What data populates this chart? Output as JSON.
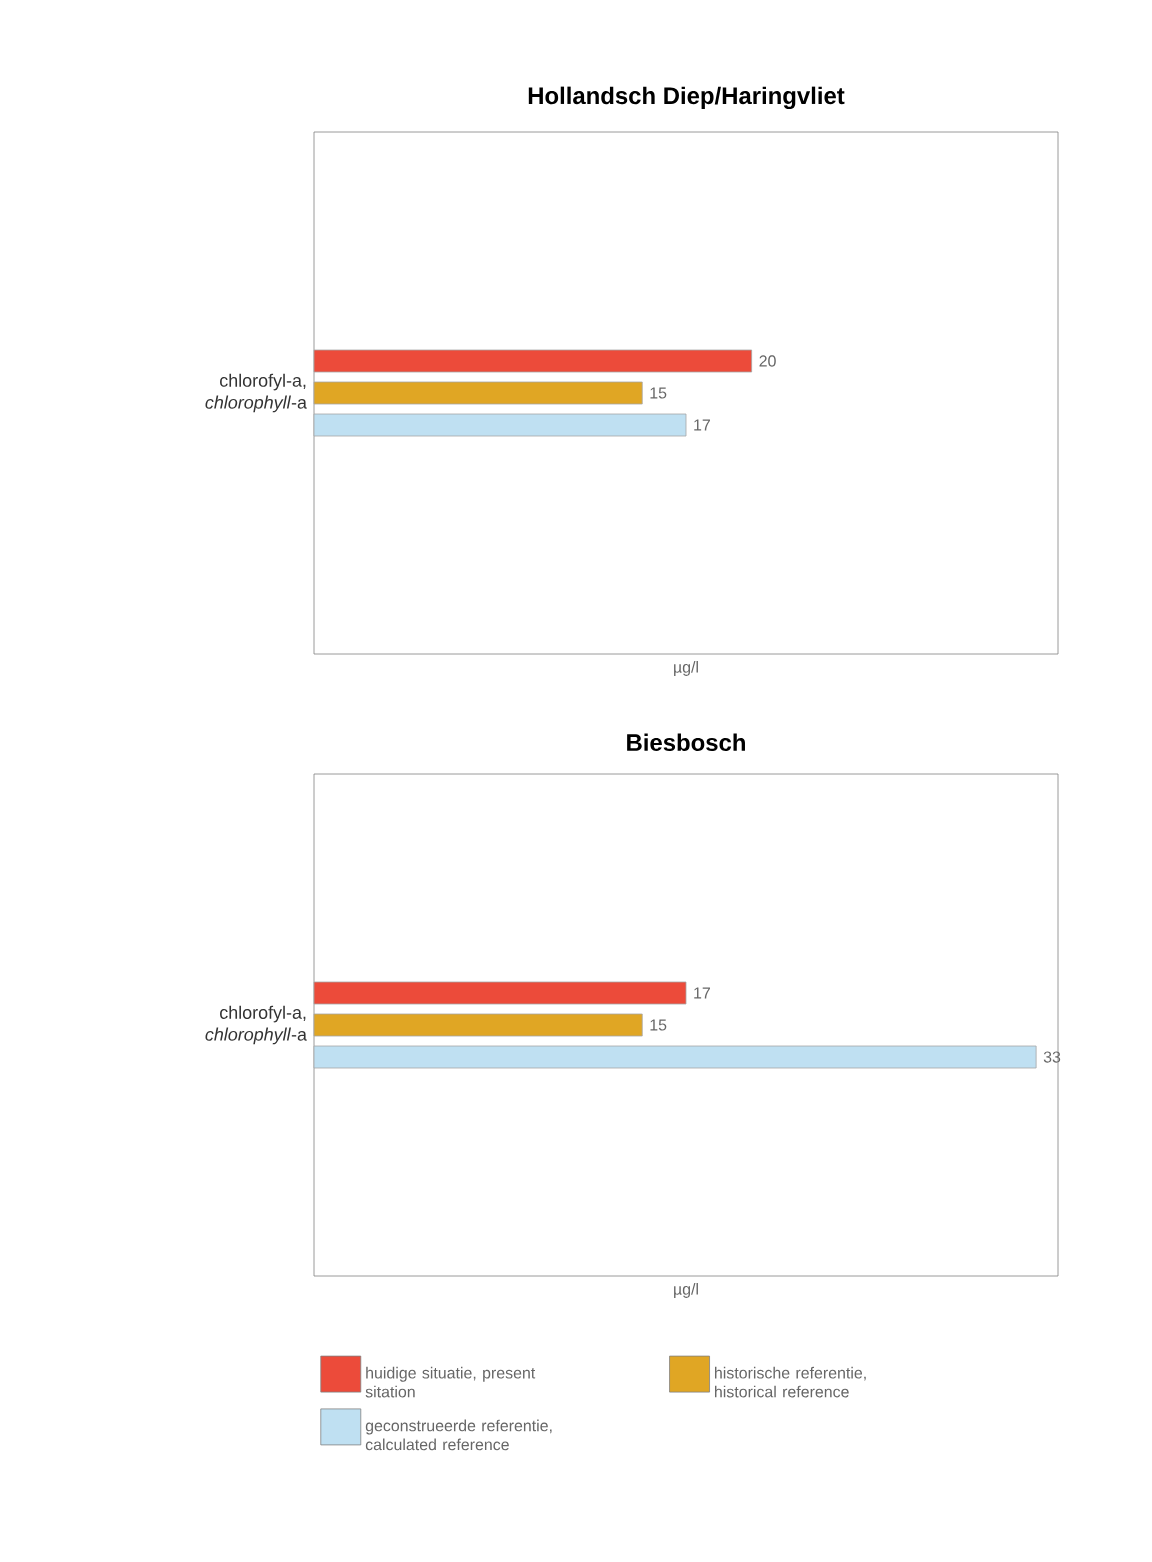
{
  "chart_data": [
    {
      "type": "bar",
      "orientation": "horizontal",
      "title": "Hollandsch Diep/Haringvliet",
      "xlabel": "µg/l",
      "categories": [
        "chlorofyl-a, *chlorophyll*-a"
      ],
      "xlim": [
        0,
        34
      ],
      "data_labels": true,
      "legend": false,
      "series": [
        {
          "color": "#ec4b3a",
          "values": [
            20
          ]
        },
        {
          "color": "#e0a624",
          "values": [
            15
          ]
        },
        {
          "color": "#bfe0f2",
          "values": [
            17
          ]
        }
      ]
    },
    {
      "type": "bar",
      "orientation": "horizontal",
      "title": "Biesbosch",
      "xlabel": "µg/l",
      "categories": [
        "chlorofyl-a, *chlorophyll*-a"
      ],
      "xlim": [
        0,
        34
      ],
      "data_labels": true,
      "legend": "bottom",
      "series": [
        {
          "name": "huidige situatie, present sitation",
          "color": "#ec4b3a",
          "values": [
            17
          ]
        },
        {
          "name": "historische referentie, historical reference",
          "color": "#e0a624",
          "values": [
            15
          ]
        },
        {
          "name": "geconstrueerde referentie, calculated reference",
          "color": "#bfe0f2",
          "values": [
            33
          ]
        }
      ]
    }
  ]
}
